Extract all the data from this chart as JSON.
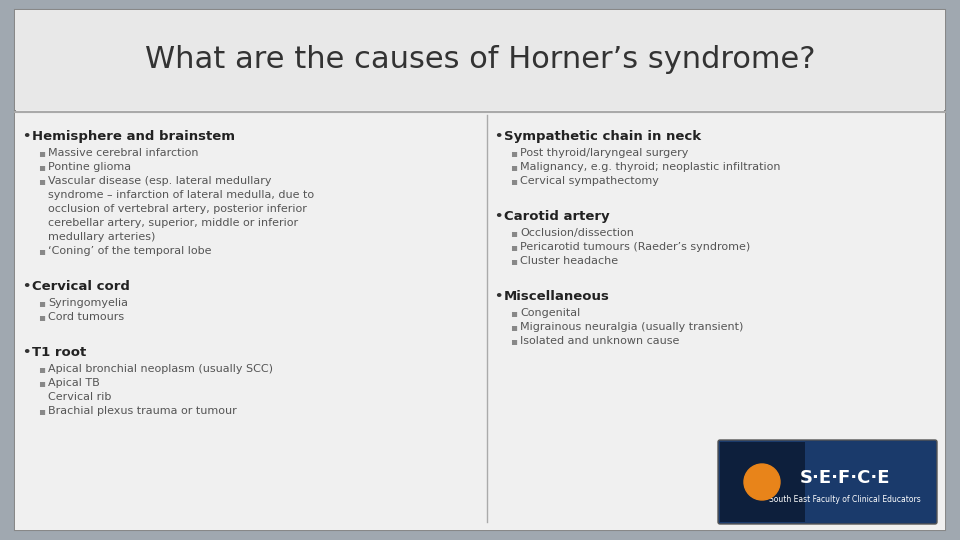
{
  "title": "What are the causes of Horner’s syndrome?",
  "background_outer": "#a0a8b0",
  "background_title": "#e8e8e8",
  "background_content": "#f0f0f0",
  "title_color": "#333333",
  "title_fontsize": 22,
  "header_color": "#222222",
  "bullet_color": "#333333",
  "sub_bullet_color": "#555555",
  "left_column": [
    {
      "header": "Hemisphere and brainstem",
      "items": [
        "Massive cerebral infarction",
        "Pontine glioma",
        "Vascular disease (esp. lateral medullary\nsyndrome – infarction of lateral medulla, due to\nocclusion of vertebral artery, posterior inferior\ncerebellar artery, superior, middle or inferior\nmedullary arteries)",
        "‘Coning’ of the temporal lobe"
      ]
    },
    {
      "header": "Cervical cord",
      "items": [
        "Syringomyelia",
        "Cord tumours"
      ]
    },
    {
      "header": "T1 root",
      "items": [
        "Apical bronchial neoplasm (usually SCC)",
        "Apical TB\nCervical rib",
        "Brachial plexus trauma or tumour"
      ]
    }
  ],
  "right_column": [
    {
      "header": "Sympathetic chain in neck",
      "items": [
        "Post thyroid/laryngeal surgery",
        "Malignancy, e.g. thyroid; neoplastic infiltration",
        "Cervical sympathectomy"
      ]
    },
    {
      "header": "Carotid artery",
      "items": [
        "Occlusion/dissection",
        "Pericarotid tumours (Raeder’s syndrome)",
        "Cluster headache"
      ]
    },
    {
      "header": "Miscellaneous",
      "items": [
        "Congenital",
        "Migrainous neuralgia (usually transient)",
        "Isolated and unknown cause"
      ]
    }
  ]
}
